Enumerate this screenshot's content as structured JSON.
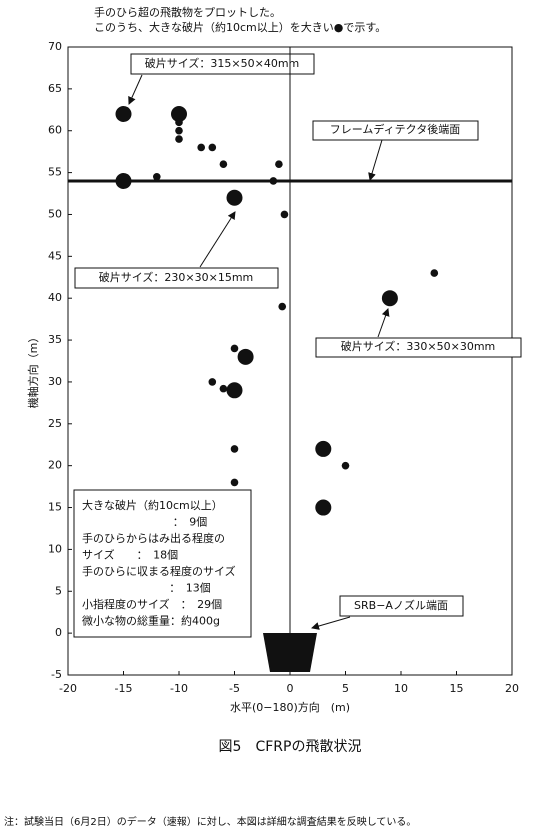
{
  "chart_data": {
    "type": "scatter",
    "header": [
      "手のひら超の飛散物をプロットした。",
      "このうち、大きな破片（約10cm以上）を大きい●で示す。"
    ],
    "x_label": "水平(0−180)方向　(m)",
    "y_label": "機軸方向（m）",
    "caption": "図5　CFRPの飛散状況",
    "footnote": "注：試験当日（6月2日）のデータ（速報）に対し、本図は詳細な調査結果を反映している。",
    "xlim": [
      -20,
      20
    ],
    "ylim": [
      -5,
      70
    ],
    "xticks": [
      -20,
      -15,
      -10,
      -5,
      0,
      5,
      10,
      15,
      20
    ],
    "yticks": [
      -5,
      0,
      5,
      10,
      15,
      20,
      25,
      30,
      35,
      40,
      45,
      50,
      55,
      60,
      65,
      70
    ],
    "color": "#111111",
    "series": [
      {
        "x": [
          -15,
          -10,
          -15,
          -5,
          -4,
          -5,
          3,
          3,
          9
        ],
        "values": [
          62,
          62,
          54,
          52,
          33,
          29,
          22,
          15,
          40
        ]
      },
      {
        "x": [
          -10,
          -10,
          -10,
          -8,
          -7,
          -6,
          -12,
          -1.5,
          -1,
          -0.5,
          -0.7,
          13,
          -5,
          -7,
          -6,
          -5,
          -5,
          5
        ],
        "values": [
          61,
          60,
          59,
          58,
          58,
          56,
          54.5,
          54,
          56,
          50,
          39,
          43,
          34,
          30,
          29.2,
          22,
          18,
          20
        ]
      }
    ],
    "reference_line": {
      "value": 54,
      "label": "フレームディテクタ後端面"
    },
    "annotations": [
      "破片サイズ：315×50×40mm",
      "破片サイズ：230×30×15mm",
      "破片サイズ：330×50×30mm",
      "SRB−Aノズル端面"
    ],
    "summary": [
      "大きな破片（約10cm以上）",
      "：　9個",
      "手のひらからはみ出る程度の",
      "サイズ　　：　18個",
      "手のひらに収まる程度のサイズ",
      "：　13個",
      "小指程度のサイズ　：　29個",
      "微小な物の総重量：約400g"
    ]
  }
}
